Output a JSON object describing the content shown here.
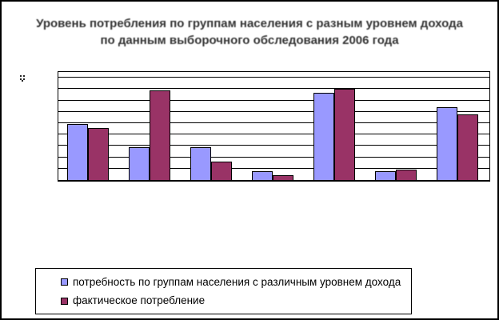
{
  "title": {
    "line1": "Уровень потребления по группам населения с разным уровнем дохода",
    "line2": "по данным выборочного обследования 2006 года"
  },
  "colors": {
    "series_needs": "#9999ff",
    "series_actual": "#993366",
    "plot_background": "#ffffff",
    "gridline": "#000000",
    "frame": "#000000"
  },
  "y_axis": {
    "remnant_label": "8"
  },
  "legend": {
    "items": [
      {
        "label": "потребность по группам населения с различным уровнем дохода",
        "color": "#9999ff"
      },
      {
        "label": "фактическое потребление",
        "color": "#993366"
      }
    ]
  },
  "chart_data": {
    "type": "bar",
    "title": "Уровень потребления по группам населения с разным уровнем дохода, по данным выборочного обследования 2006 года",
    "categories": [
      "",
      "",
      "",
      "",
      "",
      "",
      ""
    ],
    "series": [
      {
        "name": "потребность по группам населения с различным уровнем дохода",
        "color": "#9999ff",
        "values": [
          49,
          29,
          29,
          8,
          77,
          8,
          64
        ]
      },
      {
        "name": "фактическое потребление",
        "color": "#993366",
        "values": [
          46,
          79,
          16,
          4,
          80,
          9,
          58
        ]
      }
    ],
    "xlabel": "",
    "ylabel": "",
    "ylim": [
      0,
      95
    ],
    "gridline_step": 10,
    "grid": true,
    "legend_position": "bottom"
  }
}
